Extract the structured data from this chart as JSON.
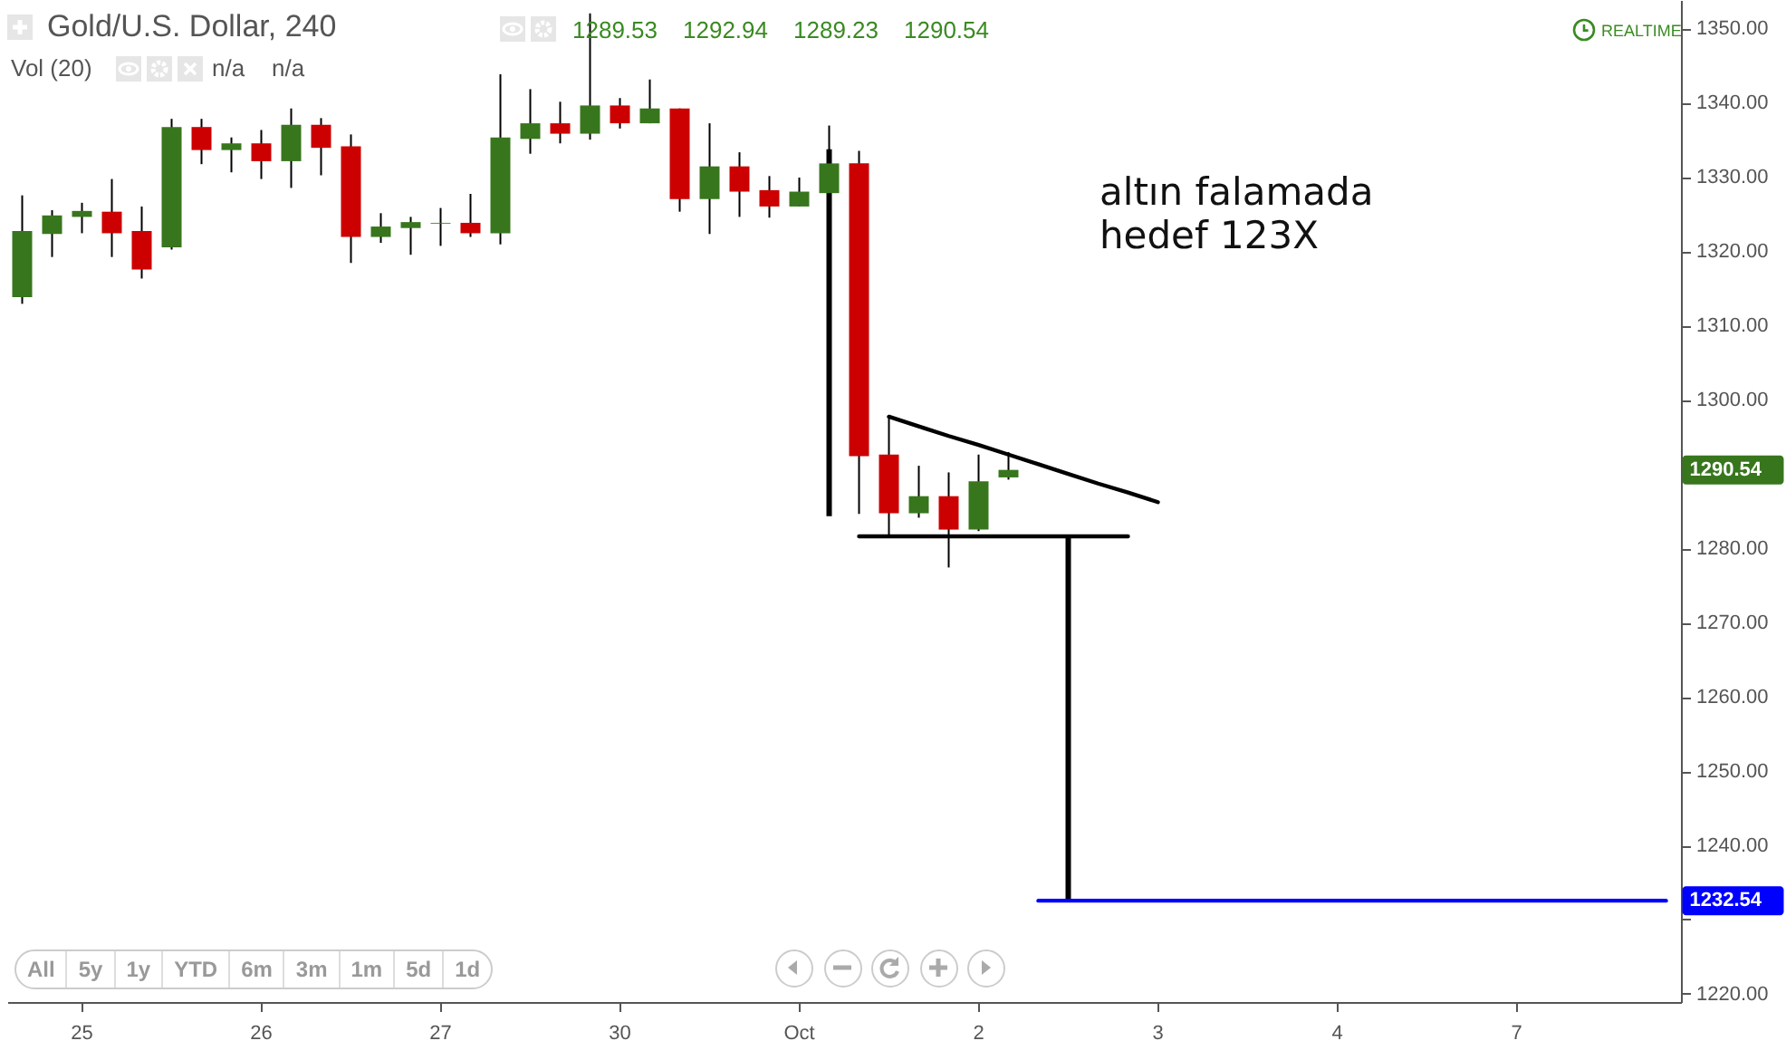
{
  "chart_data": {
    "type": "candlestick",
    "title": "Gold/U.S. Dollar, 240",
    "categories": [
      null,
      null,
      "25",
      null,
      null,
      null,
      null,
      null,
      "26",
      null,
      null,
      null,
      null,
      null,
      "27",
      null,
      null,
      null,
      null,
      null,
      "30",
      null,
      null,
      null,
      null,
      null,
      "Oct",
      null,
      null,
      null,
      null,
      null,
      "2",
      null,
      null,
      null,
      null,
      null,
      "3",
      null,
      null,
      null,
      null,
      null,
      "4",
      null,
      null,
      null,
      null,
      null,
      "7",
      null,
      null,
      null,
      null,
      null
    ],
    "ohlc": [
      [
        1313.8,
        1327.5,
        1312.9,
        1322.7
      ],
      [
        1322.3,
        1325.5,
        1319.2,
        1324.8
      ],
      [
        1324.6,
        1326.5,
        1322.4,
        1325.4
      ],
      [
        1325.3,
        1329.7,
        1319.2,
        1322.4
      ],
      [
        1322.7,
        1326.0,
        1316.3,
        1317.5
      ],
      [
        1320.5,
        1337.8,
        1320.2,
        1336.7
      ],
      [
        1336.7,
        1337.8,
        1331.7,
        1333.6
      ],
      [
        1333.6,
        1335.3,
        1330.6,
        1334.5
      ],
      [
        1334.5,
        1336.3,
        1329.7,
        1332.1
      ],
      [
        1332.1,
        1339.2,
        1328.5,
        1337.0
      ],
      [
        1337.0,
        1337.9,
        1330.2,
        1333.9
      ],
      [
        1334.1,
        1335.7,
        1318.4,
        1321.9
      ],
      [
        1321.9,
        1325.1,
        1321.1,
        1323.3
      ],
      [
        1323.1,
        1324.6,
        1319.5,
        1323.9
      ],
      [
        1323.7,
        1325.8,
        1320.7,
        1323.8
      ],
      [
        1323.8,
        1327.7,
        1321.9,
        1322.4
      ],
      [
        1322.4,
        1343.8,
        1320.9,
        1335.3
      ],
      [
        1335.1,
        1341.8,
        1333.1,
        1337.2
      ],
      [
        1337.2,
        1340.1,
        1334.5,
        1335.8
      ],
      [
        1335.8,
        1352.0,
        1335.0,
        1339.6
      ],
      [
        1339.6,
        1340.6,
        1336.5,
        1337.2
      ],
      [
        1337.2,
        1343.1,
        1337.2,
        1339.2
      ],
      [
        1339.2,
        1339.2,
        1325.3,
        1327.0
      ],
      [
        1327.0,
        1337.2,
        1322.3,
        1331.4
      ],
      [
        1331.4,
        1333.3,
        1324.6,
        1328.0
      ],
      [
        1328.2,
        1330.1,
        1324.5,
        1326.0
      ],
      [
        1326.0,
        1329.9,
        1326.0,
        1328.0
      ],
      [
        1327.8,
        1336.9,
        1327.8,
        1331.8
      ],
      [
        1331.8,
        1333.5,
        1284.6,
        1292.4
      ],
      [
        1292.6,
        1297.7,
        1281.7,
        1284.7
      ],
      [
        1284.7,
        1291.1,
        1284.1,
        1287.0
      ],
      [
        1287.0,
        1290.2,
        1277.4,
        1282.5
      ],
      [
        1282.5,
        1292.6,
        1282.3,
        1289.0
      ],
      [
        1289.53,
        1292.94,
        1289.23,
        1290.54
      ],
      null,
      null,
      null,
      null,
      null,
      null,
      null,
      null,
      null,
      null,
      null,
      null,
      null,
      null,
      null,
      null,
      null,
      null,
      null,
      null,
      null,
      null
    ],
    "colors": [
      "#38761d",
      "#38761d",
      "#38761d",
      "#cc0000",
      "#cc0000",
      "#38761d",
      "#cc0000",
      "#38761d",
      "#cc0000",
      "#38761d",
      "#cc0000",
      "#cc0000",
      "#38761d",
      "#38761d",
      "#38761d",
      "#cc0000",
      "#38761d",
      "#38761d",
      "#cc0000",
      "#38761d",
      "#cc0000",
      "#38761d",
      "#cc0000",
      "#38761d",
      "#cc0000",
      "#cc0000",
      "#38761d",
      "#38761d",
      "#cc0000",
      "#cc0000",
      "#38761d",
      "#cc0000",
      "#38761d",
      "#38761d",
      null,
      null,
      null,
      null,
      null,
      null,
      null,
      null,
      null,
      null,
      null,
      null,
      null,
      null,
      null,
      null,
      null,
      null,
      null,
      null,
      null,
      null
    ],
    "series": [
      {
        "type": "bar",
        "color": "#000000",
        "base": [
          null,
          null,
          null,
          null,
          null,
          null,
          null,
          null,
          null,
          null,
          null,
          null,
          null,
          null,
          null,
          null,
          null,
          null,
          null,
          null,
          null,
          null,
          null,
          null,
          null,
          null,
          null,
          1284.3,
          null,
          null,
          null,
          null,
          null,
          null,
          null,
          1232.54,
          null,
          null,
          null,
          null,
          null,
          null,
          null,
          null,
          null,
          null,
          null,
          null,
          null,
          null,
          null,
          null,
          null,
          null,
          null,
          null
        ],
        "values": [
          null,
          null,
          null,
          null,
          null,
          null,
          null,
          null,
          null,
          null,
          null,
          null,
          null,
          null,
          null,
          null,
          null,
          null,
          null,
          null,
          null,
          null,
          null,
          null,
          null,
          null,
          null,
          49.4,
          null,
          null,
          null,
          null,
          null,
          null,
          null,
          49.06,
          null,
          null,
          null,
          null,
          null,
          null,
          null,
          null,
          null,
          null,
          null,
          null,
          null,
          null,
          null,
          null,
          null,
          null,
          null,
          null
        ]
      },
      {
        "type": "line",
        "color": "#000000",
        "values": [
          null,
          null,
          null,
          null,
          null,
          null,
          null,
          null,
          null,
          null,
          null,
          null,
          null,
          null,
          null,
          null,
          null,
          null,
          null,
          null,
          null,
          null,
          null,
          null,
          null,
          null,
          null,
          null,
          null,
          1297.7,
          1296.4,
          1295.1,
          1293.9,
          1292.6,
          1291.3,
          1290.0,
          1288.7,
          1287.5,
          1286.2,
          null,
          null,
          null,
          null,
          null,
          null,
          null,
          null,
          null,
          null,
          null,
          null,
          null,
          null,
          null,
          null,
          null
        ]
      },
      {
        "type": "line",
        "color": "#000000",
        "values": [
          null,
          null,
          null,
          null,
          null,
          null,
          null,
          null,
          null,
          null,
          null,
          null,
          null,
          null,
          null,
          null,
          null,
          null,
          null,
          null,
          null,
          null,
          null,
          null,
          null,
          null,
          null,
          null,
          1281.6,
          1281.6,
          1281.6,
          1281.6,
          1281.6,
          1281.6,
          1281.6,
          1281.6,
          1281.6,
          1281.6,
          null,
          null,
          null,
          null,
          null,
          null,
          null,
          null,
          null,
          null,
          null,
          null,
          null,
          null,
          null,
          null,
          null,
          null
        ]
      },
      {
        "type": "line",
        "color": "#0000ff",
        "values": [
          null,
          null,
          null,
          null,
          null,
          null,
          null,
          null,
          null,
          null,
          null,
          null,
          null,
          null,
          null,
          null,
          null,
          null,
          null,
          null,
          null,
          null,
          null,
          null,
          null,
          null,
          null,
          null,
          null,
          null,
          null,
          null,
          null,
          null,
          1232.54,
          1232.54,
          1232.54,
          1232.54,
          1232.54,
          1232.54,
          1232.54,
          1232.54,
          1232.54,
          1232.54,
          1232.54,
          1232.54,
          1232.54,
          1232.54,
          1232.54,
          1232.54,
          1232.54,
          1232.54,
          1232.54,
          1232.54,
          1232.54,
          1232.54
        ],
        "value_labels": [
          null,
          null,
          null,
          null,
          null,
          null,
          null,
          null,
          null,
          null,
          null,
          null,
          null,
          null,
          null,
          null,
          null,
          null,
          null,
          null,
          null,
          null,
          null,
          null,
          null,
          null,
          null,
          null,
          null,
          null,
          null,
          null,
          null,
          null,
          null,
          null,
          null,
          null,
          null,
          null,
          null,
          null,
          null,
          null,
          null,
          null,
          null,
          null,
          null,
          null,
          null,
          null,
          null,
          null,
          null,
          "1232.54"
        ]
      }
    ],
    "ylim": [
      1218.9,
      1353.8
    ],
    "yticks": [
      {
        "value": 1220,
        "label": "1220.00"
      },
      {
        "value": 1230,
        "label": null
      },
      {
        "value": 1240,
        "label": "1240.00"
      },
      {
        "value": 1250,
        "label": "1250.00"
      },
      {
        "value": 1260,
        "label": "1260.00"
      },
      {
        "value": 1270,
        "label": "1270.00"
      },
      {
        "value": 1280,
        "label": "1280.00"
      },
      {
        "value": 1290,
        "label": null
      },
      {
        "value": 1300,
        "label": "1300.00"
      },
      {
        "value": 1310,
        "label": "1310.00"
      },
      {
        "value": 1320,
        "label": "1320.00"
      },
      {
        "value": 1330,
        "label": "1330.00"
      },
      {
        "value": 1340,
        "label": "1340.00"
      },
      {
        "value": 1350,
        "label": "1350.00"
      }
    ],
    "grid": false,
    "annotations": [
      "altın falamada\nhedef 123X",
      "1290.54",
      "1289.53",
      "1292.94",
      "1289.23",
      "1290.54",
      "Vol (20)",
      "n/a",
      "n/a",
      "REALTIME",
      "All",
      "5y",
      "1y",
      "YTD",
      "6m",
      "3m",
      "1m",
      "5d",
      "1d"
    ]
  }
}
